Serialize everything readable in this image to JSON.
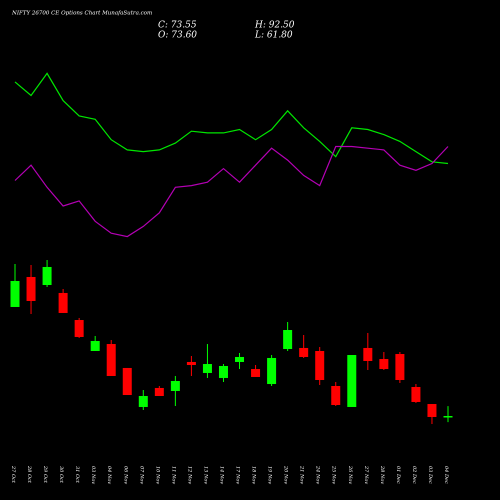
{
  "chart_data": {
    "type": "candlestick",
    "title": "NIFTY 26700  CE Options  Chart MunafaSutra.com",
    "summary": {
      "close": "C: 73.55",
      "high": "H: 92.50",
      "open": "O: 73.60",
      "low": "L: 61.80"
    },
    "categories": [
      "27 Oct",
      "28 Oct",
      "29 Oct",
      "30 Oct",
      "31 Oct",
      "03 Nov",
      "04 Nov",
      "06 Nov",
      "07 Nov",
      "10 Nov",
      "11 Nov",
      "12 Nov",
      "13 Nov",
      "14 Nov",
      "17 Nov",
      "18 Nov",
      "19 Nov",
      "20 Nov",
      "21 Nov",
      "24 Nov",
      "25 Nov",
      "26 Nov",
      "27 Nov",
      "28 Nov",
      "01 Dec",
      "02 Dec",
      "03 Dec",
      "04 Dec"
    ],
    "open": [
      282.9,
      340.5,
      325.1,
      309.8,
      257.9,
      198.4,
      211.8,
      165.8,
      90.9,
      127.4,
      121.6,
      177.3,
      156.2,
      146.6,
      177.3,
      163.8,
      135,
      202.2,
      204.2,
      198.4,
      131.2,
      90.9,
      204.2,
      183,
      192.6,
      129.3,
      96.6,
      73.6
    ],
    "high": [
      365.4,
      363.5,
      373.1,
      317.4,
      261.8,
      227.2,
      219.5,
      165.8,
      123.5,
      131.2,
      150.4,
      188.8,
      211.8,
      173.4,
      194.6,
      171.5,
      190.7,
      254.1,
      229.1,
      206.1,
      138.9,
      190.7,
      233,
      196.5,
      196.5,
      135,
      96.6,
      92.5
    ],
    "low": [
      282.9,
      269.4,
      321.3,
      271.4,
      223.4,
      198.4,
      150.4,
      113.9,
      85.1,
      112,
      92.8,
      150.4,
      146.6,
      138.9,
      163.8,
      148.5,
      131.2,
      198.4,
      185,
      133.1,
      92.8,
      90.9,
      161.9,
      161.9,
      137,
      98.6,
      58.2,
      61.8
    ],
    "close": [
      332.8,
      294.4,
      359.7,
      271.4,
      225.3,
      217.6,
      150.4,
      113.9,
      112,
      112,
      140.8,
      171.5,
      173.4,
      169.6,
      186.9,
      148.5,
      185,
      238.7,
      186.9,
      142.7,
      94.7,
      190.7,
      179.2,
      163.8,
      142.7,
      100.5,
      71.7,
      73.55
    ],
    "colors": [
      "#00ff00",
      "#ff0000",
      "#00ff00",
      "#ff0000",
      "#ff0000",
      "#00ff00",
      "#ff0000",
      "#ff0000",
      "#00ff00",
      "#ff0000",
      "#00ff00",
      "#ff0000",
      "#00ff00",
      "#00ff00",
      "#00ff00",
      "#ff0000",
      "#00ff00",
      "#00ff00",
      "#ff0000",
      "#ff0000",
      "#ff0000",
      "#00ff00",
      "#ff0000",
      "#ff0000",
      "#ff0000",
      "#ff0000",
      "#ff0000",
      "#00ff00"
    ],
    "ylim": [
      40,
      390
    ],
    "lines": [
      {
        "color": "#00e600",
        "values": [
          93,
          85,
          98,
          82,
          73,
          71,
          59,
          53,
          52,
          53,
          57,
          64,
          63,
          63,
          65,
          59,
          65,
          76,
          66,
          58,
          49,
          66,
          65,
          62,
          58,
          52,
          46,
          45
        ]
      },
      {
        "color": "#b400b4",
        "values": [
          35,
          44,
          31,
          20,
          23,
          11,
          4,
          2,
          8,
          16,
          31,
          32,
          34,
          42,
          34,
          44,
          54,
          47,
          38,
          32,
          55,
          55,
          54,
          53,
          44,
          41,
          45,
          55
        ]
      }
    ],
    "y2lim": [
      0,
      100
    ]
  }
}
